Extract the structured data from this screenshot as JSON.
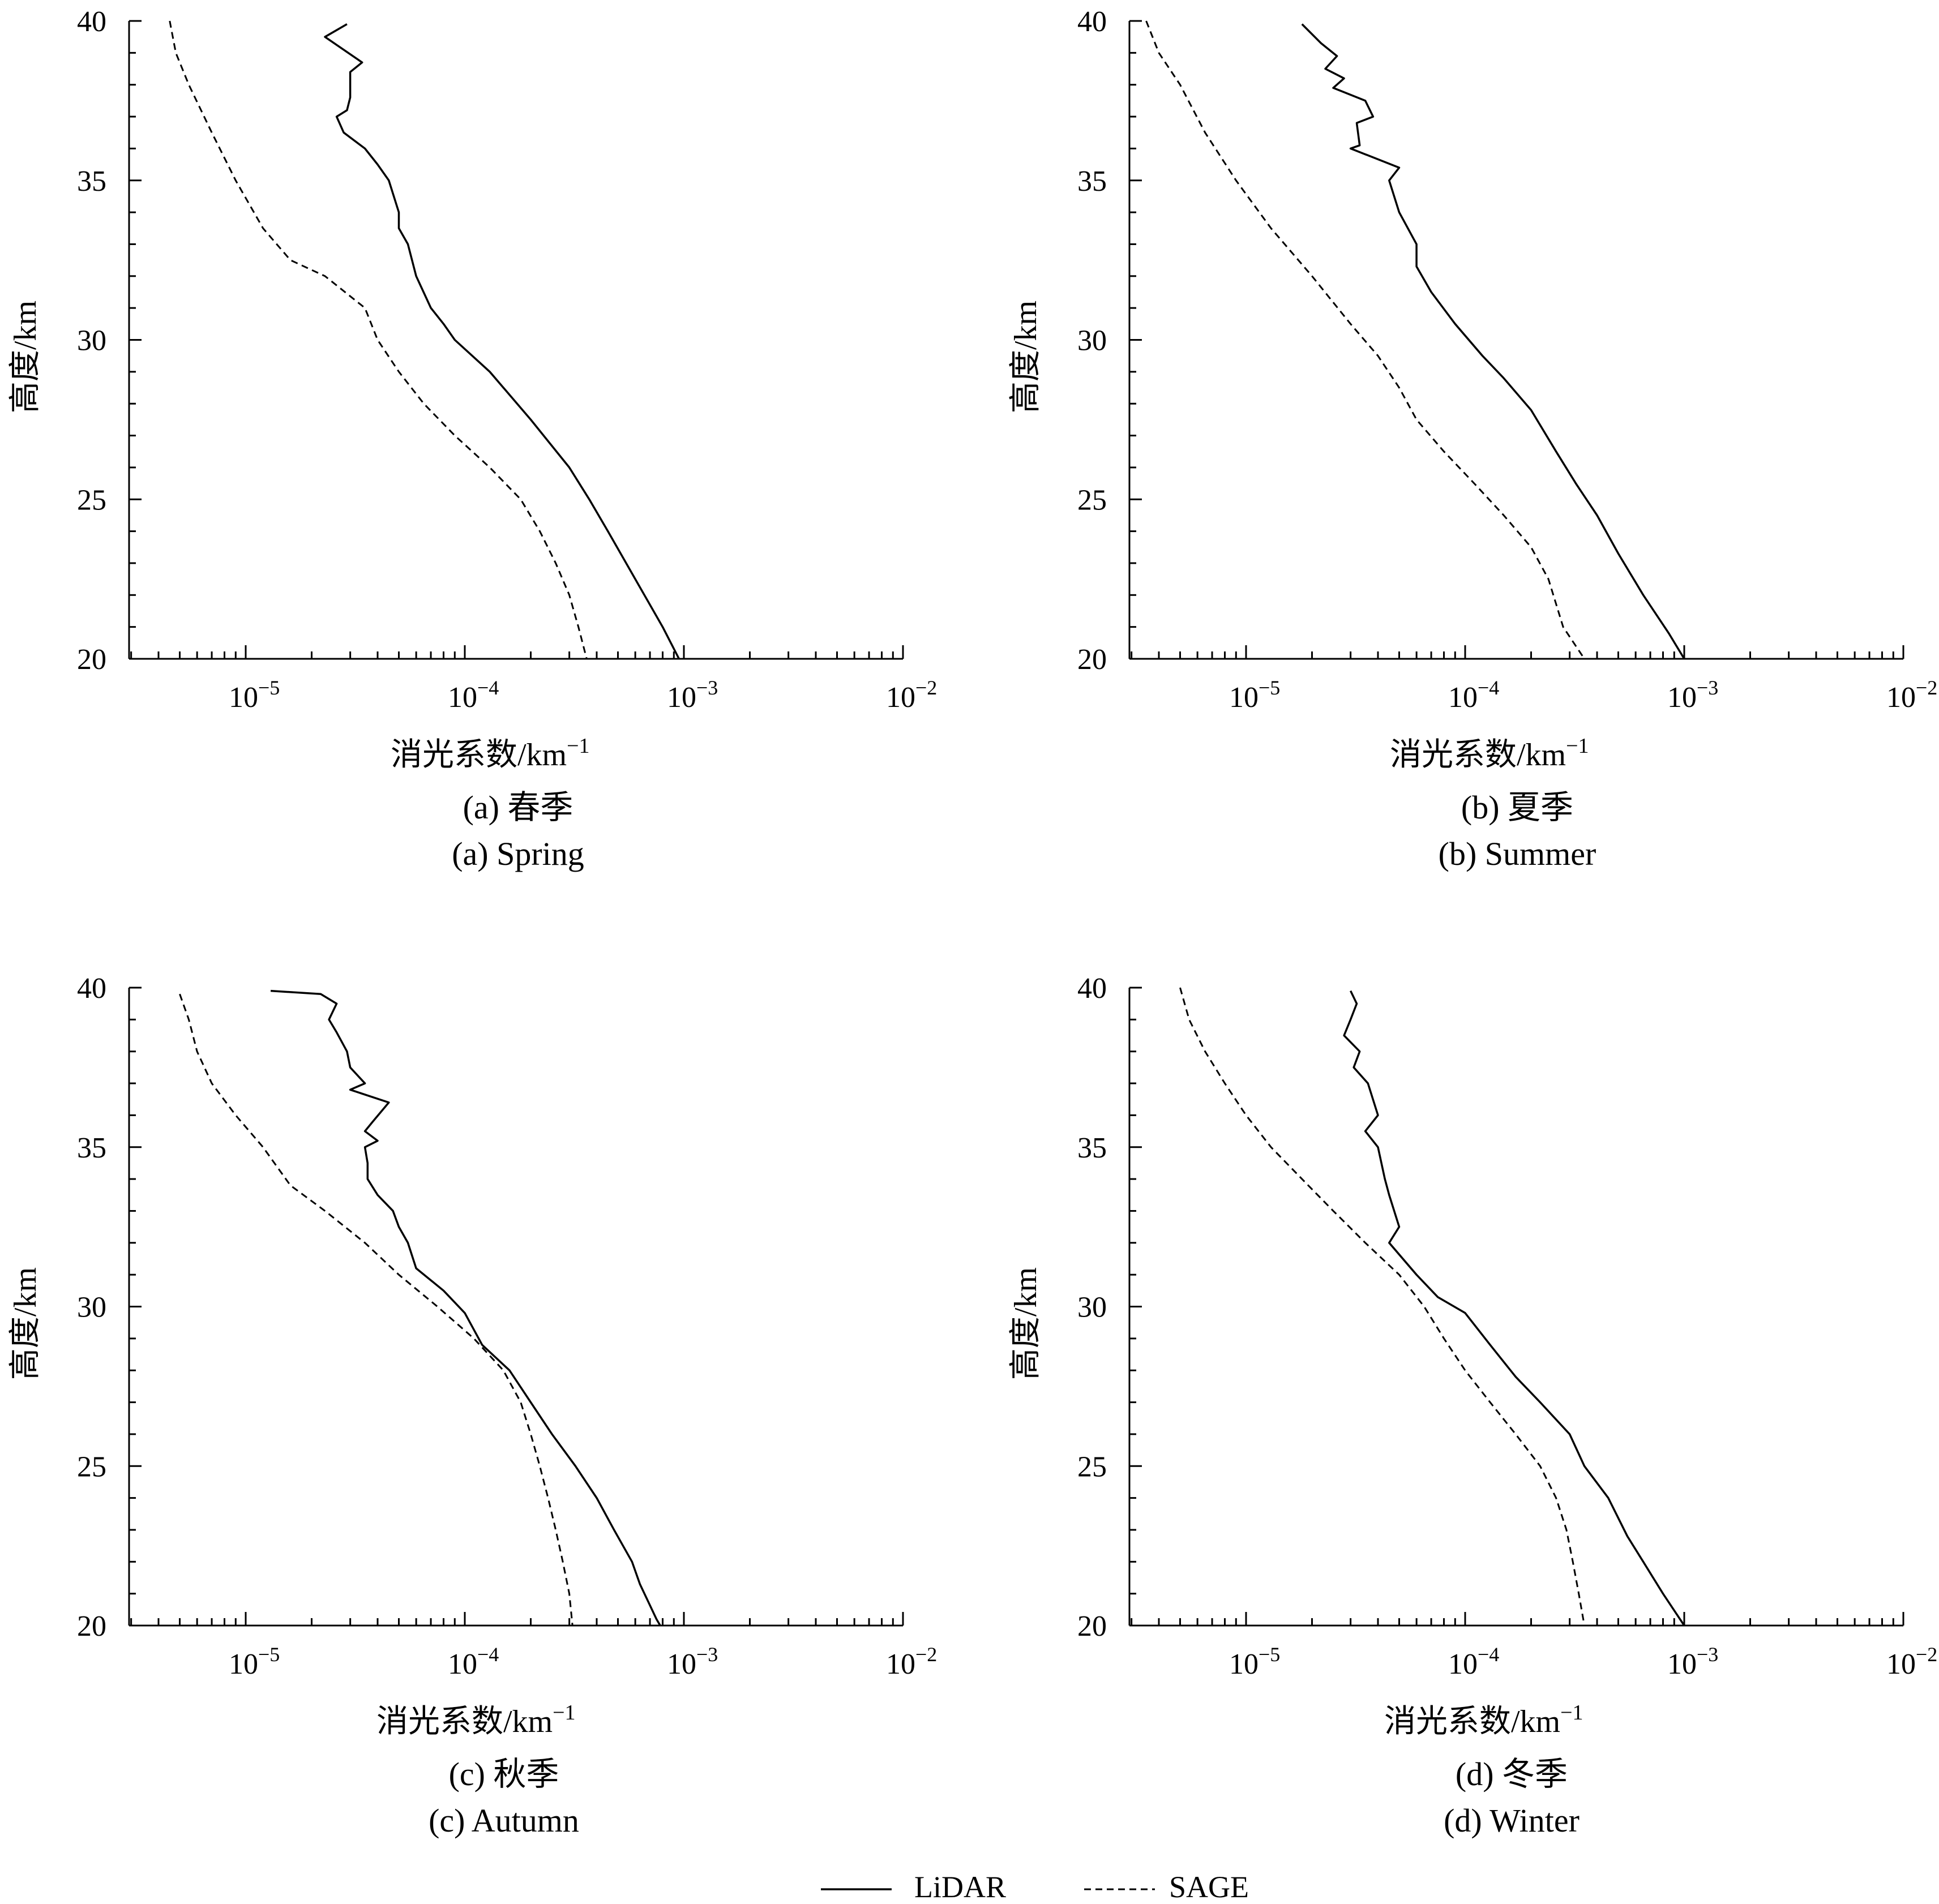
{
  "legend": {
    "lidar_label": "LiDAR",
    "sage_label": "SAGE"
  },
  "chart_data": [
    {
      "type": "line",
      "caption_cn": "(a) 春季",
      "caption_en": "(a) Spring",
      "xlabel": "消光系数/km",
      "xlabel_sup": "−1",
      "ylabel": "高度/km",
      "x_scale": "log",
      "xlim": [
        3e-06,
        0.01
      ],
      "ylim": [
        20,
        40
      ],
      "x_ticks": [
        {
          "base": "10",
          "exp": "−5"
        },
        {
          "base": "10",
          "exp": "−4"
        },
        {
          "base": "10",
          "exp": "−3"
        },
        {
          "base": "10",
          "exp": "−2"
        }
      ],
      "y_ticks": [
        "20",
        "25",
        "30",
        "35",
        "40"
      ],
      "series": [
        {
          "name": "LiDAR",
          "points": [
            [
              2.9e-05,
              39.9
            ],
            [
              2.3e-05,
              39.5
            ],
            [
              3.4e-05,
              38.7
            ],
            [
              3e-05,
              38.4
            ],
            [
              3e-05,
              37.6
            ],
            [
              2.9e-05,
              37.2
            ],
            [
              2.6e-05,
              37.0
            ],
            [
              2.8e-05,
              36.5
            ],
            [
              3.5e-05,
              36.0
            ],
            [
              4e-05,
              35.5
            ],
            [
              4.5e-05,
              35.0
            ],
            [
              5e-05,
              34.0
            ],
            [
              5e-05,
              33.5
            ],
            [
              5.5e-05,
              33.0
            ],
            [
              6e-05,
              32.0
            ],
            [
              7e-05,
              31.0
            ],
            [
              8e-05,
              30.5
            ],
            [
              9e-05,
              30.0
            ],
            [
              0.00013,
              29.0
            ],
            [
              0.0002,
              27.5
            ],
            [
              0.0003,
              26.0
            ],
            [
              0.00037,
              25.0
            ],
            [
              0.00045,
              24.0
            ],
            [
              0.0006,
              22.5
            ],
            [
              0.0008,
              21.0
            ],
            [
              0.00095,
              20.0
            ]
          ]
        },
        {
          "name": "SAGE",
          "points": [
            [
              4.5e-06,
              40.0
            ],
            [
              4.8e-06,
              39.0
            ],
            [
              5.5e-06,
              38.0
            ],
            [
              7e-06,
              36.5
            ],
            [
              9e-06,
              35.0
            ],
            [
              1.2e-05,
              33.5
            ],
            [
              1.6e-05,
              32.5
            ],
            [
              2.3e-05,
              32.0
            ],
            [
              3.5e-05,
              31.0
            ],
            [
              4e-05,
              30.0
            ],
            [
              5e-05,
              29.0
            ],
            [
              6.5e-05,
              28.0
            ],
            [
              9e-05,
              27.0
            ],
            [
              0.00013,
              26.0
            ],
            [
              0.00018,
              25.0
            ],
            [
              0.00022,
              24.0
            ],
            [
              0.00026,
              23.0
            ],
            [
              0.0003,
              22.0
            ],
            [
              0.00033,
              21.0
            ],
            [
              0.00036,
              20.0
            ]
          ]
        }
      ]
    },
    {
      "type": "line",
      "caption_cn": "(b) 夏季",
      "caption_en": "(b) Summer",
      "xlabel": "消光系数/km",
      "xlabel_sup": "−1",
      "ylabel": "高度/km",
      "x_scale": "log",
      "xlim": [
        3e-06,
        0.01
      ],
      "ylim": [
        20,
        40
      ],
      "x_ticks": [
        {
          "base": "10",
          "exp": "−5"
        },
        {
          "base": "10",
          "exp": "−4"
        },
        {
          "base": "10",
          "exp": "−3"
        },
        {
          "base": "10",
          "exp": "−2"
        }
      ],
      "y_ticks": [
        "20",
        "25",
        "30",
        "35",
        "40"
      ],
      "series": [
        {
          "name": "LiDAR",
          "points": [
            [
              1.8e-05,
              39.9
            ],
            [
              2.2e-05,
              39.3
            ],
            [
              2.6e-05,
              38.9
            ],
            [
              2.3e-05,
              38.5
            ],
            [
              2.8e-05,
              38.2
            ],
            [
              2.5e-05,
              37.9
            ],
            [
              3.5e-05,
              37.5
            ],
            [
              3.8e-05,
              37.0
            ],
            [
              3.2e-05,
              36.8
            ],
            [
              3.3e-05,
              36.1
            ],
            [
              3e-05,
              36.0
            ],
            [
              5e-05,
              35.4
            ],
            [
              4.5e-05,
              35.0
            ],
            [
              5e-05,
              34.0
            ],
            [
              6e-05,
              33.0
            ],
            [
              6e-05,
              32.3
            ],
            [
              7e-05,
              31.5
            ],
            [
              9e-05,
              30.5
            ],
            [
              0.00012,
              29.5
            ],
            [
              0.00015,
              28.8
            ],
            [
              0.0002,
              27.8
            ],
            [
              0.00026,
              26.5
            ],
            [
              0.00032,
              25.5
            ],
            [
              0.0004,
              24.5
            ],
            [
              0.0005,
              23.3
            ],
            [
              0.00065,
              22.0
            ],
            [
              0.00085,
              20.8
            ],
            [
              0.001,
              20.0
            ]
          ]
        },
        {
          "name": "SAGE",
          "points": [
            [
              3.5e-06,
              40.0
            ],
            [
              4e-06,
              39.0
            ],
            [
              5e-06,
              38.0
            ],
            [
              6.5e-06,
              36.5
            ],
            [
              9e-06,
              35.0
            ],
            [
              1.3e-05,
              33.5
            ],
            [
              2e-05,
              32.0
            ],
            [
              3e-05,
              30.5
            ],
            [
              4e-05,
              29.5
            ],
            [
              5e-05,
              28.5
            ],
            [
              6e-05,
              27.5
            ],
            [
              8e-05,
              26.5
            ],
            [
              0.00011,
              25.5
            ],
            [
              0.00015,
              24.5
            ],
            [
              0.0002,
              23.5
            ],
            [
              0.00024,
              22.5
            ],
            [
              0.00028,
              21.0
            ],
            [
              0.00035,
              20.0
            ]
          ]
        }
      ]
    },
    {
      "type": "line",
      "caption_cn": "(c) 秋季",
      "caption_en": "(c) Autumn",
      "xlabel": "消光系数/km",
      "xlabel_sup": "−1",
      "ylabel": "高度/km",
      "x_scale": "log",
      "xlim": [
        3e-06,
        0.01
      ],
      "ylim": [
        20,
        40
      ],
      "x_ticks": [
        {
          "base": "10",
          "exp": "−5"
        },
        {
          "base": "10",
          "exp": "−4"
        },
        {
          "base": "10",
          "exp": "−3"
        },
        {
          "base": "10",
          "exp": "−2"
        }
      ],
      "y_ticks": [
        "20",
        "25",
        "30",
        "35",
        "40"
      ],
      "series": [
        {
          "name": "LiDAR",
          "points": [
            [
              1.3e-05,
              39.9
            ],
            [
              2.2e-05,
              39.8
            ],
            [
              2.6e-05,
              39.5
            ],
            [
              2.4e-05,
              39.0
            ],
            [
              2.6e-05,
              38.6
            ],
            [
              2.9e-05,
              38.0
            ],
            [
              3e-05,
              37.5
            ],
            [
              3.5e-05,
              37.0
            ],
            [
              3e-05,
              36.8
            ],
            [
              4.5e-05,
              36.4
            ],
            [
              3.8e-05,
              35.8
            ],
            [
              3.5e-05,
              35.5
            ],
            [
              4e-05,
              35.2
            ],
            [
              3.5e-05,
              35.0
            ],
            [
              3.6e-05,
              34.5
            ],
            [
              3.6e-05,
              34.0
            ],
            [
              4e-05,
              33.5
            ],
            [
              4.7e-05,
              33.0
            ],
            [
              5e-05,
              32.5
            ],
            [
              5.5e-05,
              32.0
            ],
            [
              6e-05,
              31.2
            ],
            [
              8e-05,
              30.5
            ],
            [
              0.0001,
              29.8
            ],
            [
              0.00012,
              28.8
            ],
            [
              0.00016,
              28.0
            ],
            [
              0.0002,
              27.0
            ],
            [
              0.00025,
              26.0
            ],
            [
              0.00032,
              25.0
            ],
            [
              0.0004,
              24.0
            ],
            [
              0.00048,
              23.0
            ],
            [
              0.00058,
              22.0
            ],
            [
              0.00063,
              21.3
            ],
            [
              0.00075,
              20.2
            ],
            [
              0.00078,
              20.0
            ]
          ]
        },
        {
          "name": "SAGE",
          "points": [
            [
              5e-06,
              39.8
            ],
            [
              5.5e-06,
              39.0
            ],
            [
              6e-06,
              38.0
            ],
            [
              7e-06,
              37.0
            ],
            [
              9e-06,
              36.0
            ],
            [
              1.2e-05,
              35.0
            ],
            [
              1.6e-05,
              33.8
            ],
            [
              2.3e-05,
              33.0
            ],
            [
              3.5e-05,
              32.0
            ],
            [
              5e-05,
              31.0
            ],
            [
              7.5e-05,
              30.0
            ],
            [
              0.00011,
              29.0
            ],
            [
              0.00015,
              28.0
            ],
            [
              0.00018,
              27.0
            ],
            [
              0.0002,
              26.0
            ],
            [
              0.00022,
              25.0
            ],
            [
              0.00024,
              24.0
            ],
            [
              0.00026,
              23.0
            ],
            [
              0.00028,
              22.0
            ],
            [
              0.0003,
              21.0
            ],
            [
              0.00031,
              20.0
            ]
          ]
        }
      ]
    },
    {
      "type": "line",
      "caption_cn": "(d) 冬季",
      "caption_en": "(d) Winter",
      "xlabel": "消光系数/km",
      "xlabel_sup": "−1",
      "ylabel": "高度/km",
      "x_scale": "log",
      "xlim": [
        3e-06,
        0.01
      ],
      "ylim": [
        20,
        40
      ],
      "x_ticks": [
        {
          "base": "10",
          "exp": "−5"
        },
        {
          "base": "10",
          "exp": "−4"
        },
        {
          "base": "10",
          "exp": "−3"
        },
        {
          "base": "10",
          "exp": "−2"
        }
      ],
      "y_ticks": [
        "20",
        "25",
        "30",
        "35",
        "40"
      ],
      "series": [
        {
          "name": "LiDAR",
          "points": [
            [
              3e-05,
              39.9
            ],
            [
              3.2e-05,
              39.5
            ],
            [
              3e-05,
              39.0
            ],
            [
              2.8e-05,
              38.5
            ],
            [
              3.3e-05,
              38.0
            ],
            [
              3.1e-05,
              37.5
            ],
            [
              3.6e-05,
              37.0
            ],
            [
              4e-05,
              36.0
            ],
            [
              3.5e-05,
              35.5
            ],
            [
              4e-05,
              35.0
            ],
            [
              4.3e-05,
              34.0
            ],
            [
              4.5e-05,
              33.5
            ],
            [
              5e-05,
              32.5
            ],
            [
              4.5e-05,
              32.0
            ],
            [
              6e-05,
              31.0
            ],
            [
              7.5e-05,
              30.3
            ],
            [
              0.0001,
              29.8
            ],
            [
              0.00013,
              28.8
            ],
            [
              0.00017,
              27.8
            ],
            [
              0.00022,
              27.0
            ],
            [
              0.0003,
              26.0
            ],
            [
              0.00035,
              25.0
            ],
            [
              0.00045,
              24.0
            ],
            [
              0.00055,
              22.8
            ],
            [
              0.00065,
              22.0
            ],
            [
              0.0008,
              21.0
            ],
            [
              0.001,
              20.0
            ]
          ]
        },
        {
          "name": "SAGE",
          "points": [
            [
              5e-06,
              40.0
            ],
            [
              5.5e-06,
              39.0
            ],
            [
              6.5e-06,
              38.0
            ],
            [
              8e-06,
              37.0
            ],
            [
              1e-05,
              36.0
            ],
            [
              1.3e-05,
              35.0
            ],
            [
              1.8e-05,
              34.0
            ],
            [
              2.5e-05,
              33.0
            ],
            [
              3.5e-05,
              32.0
            ],
            [
              5e-05,
              31.0
            ],
            [
              6.5e-05,
              30.0
            ],
            [
              8e-05,
              29.0
            ],
            [
              0.0001,
              28.0
            ],
            [
              0.00013,
              27.0
            ],
            [
              0.00017,
              26.0
            ],
            [
              0.00022,
              25.0
            ],
            [
              0.00026,
              24.0
            ],
            [
              0.00029,
              23.0
            ],
            [
              0.00031,
              22.0
            ],
            [
              0.00033,
              21.0
            ],
            [
              0.00035,
              20.0
            ]
          ]
        }
      ]
    }
  ]
}
